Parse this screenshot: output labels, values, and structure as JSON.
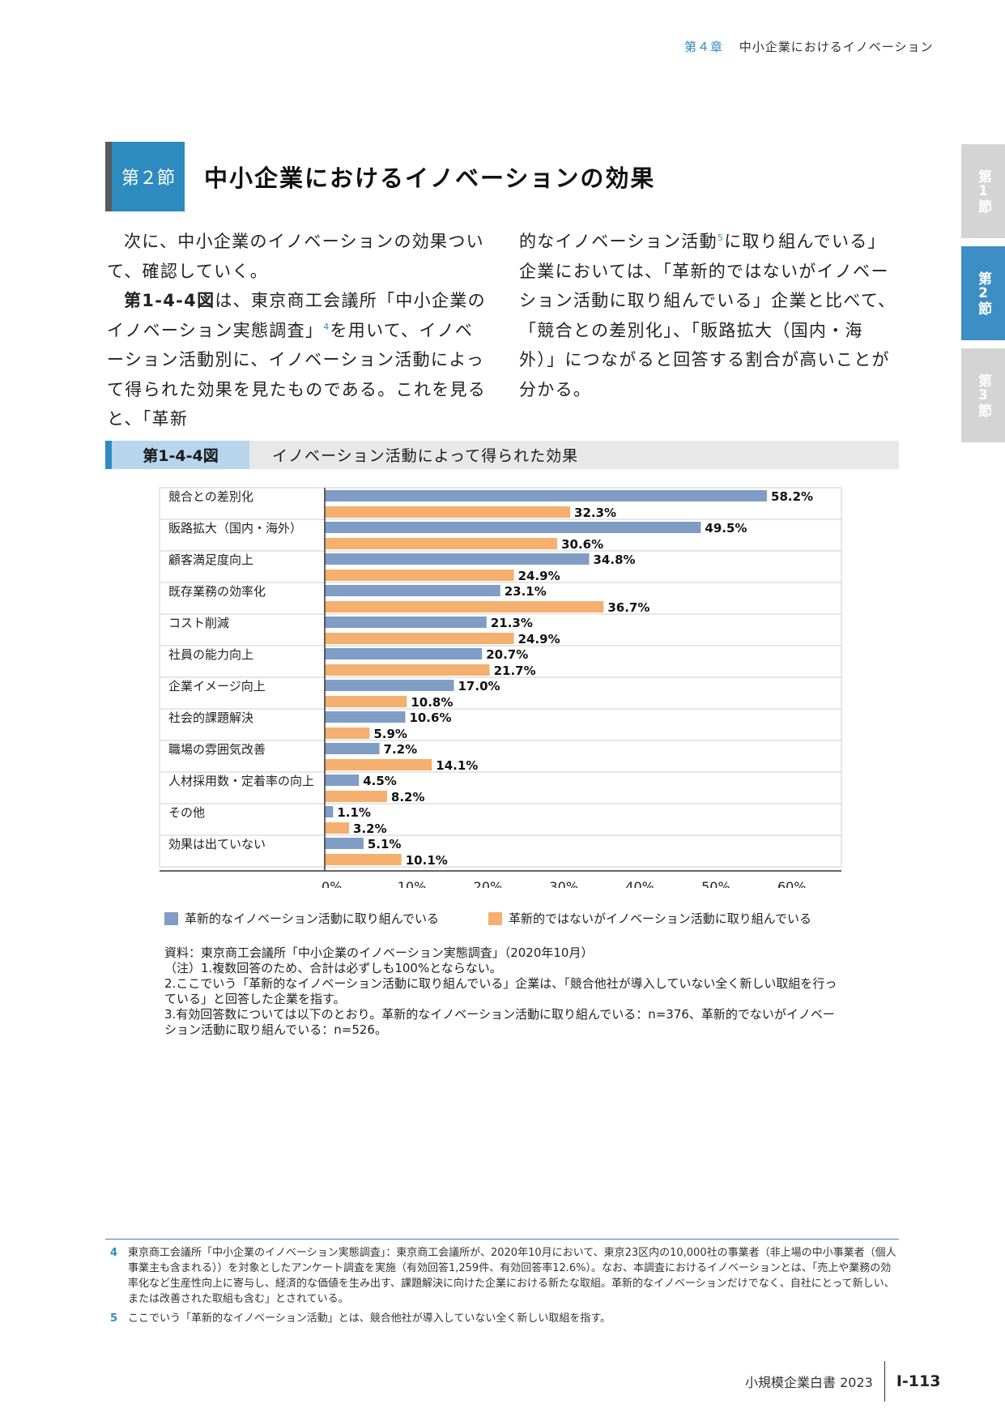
{
  "running_head": {
    "chapter": "第４章",
    "title": "中小企業におけるイノベーション"
  },
  "section": {
    "tag": "第２節",
    "title": "中小企業におけるイノベーションの効果"
  },
  "side_tabs": [
    "第1節",
    "第2節",
    "第3節"
  ],
  "body": {
    "left_p1": "次に、中小企業のイノベーションの効果ついて、確認していく。",
    "left_p2_fig": "第1-4-4図",
    "left_p2_a": "は、東京商工会議所「中小企業のイノベーション実態調査」",
    "left_p2_sup": "4",
    "left_p2_b": "を用いて、イノベーション活動別に、イノベーション活動によって得られた効果を見たものである。これを見ると、「革新",
    "right_p1_a": "的なイノベーション活動",
    "right_p1_sup": "5",
    "right_p1_b": "に取り組んでいる」企業においては、「革新的ではないがイノベーション活動に取り組んでいる」企業と比べて、「競合との差別化」、「販路拡大（国内・海外）」につながると回答する割合が高いことが分かる。"
  },
  "figure": {
    "number": "第1-4-4図",
    "title": "イノベーション活動によって得られた効果"
  },
  "chart_data": {
    "type": "bar",
    "orientation": "horizontal",
    "categories": [
      "競合との差別化",
      "販路拡大（国内・海外）",
      "顧客満足度向上",
      "既存業務の効率化",
      "コスト削減",
      "社員の能力向上",
      "企業イメージ向上",
      "社会的課題解決",
      "職場の雰囲気改善",
      "人材採用数・定着率の向上",
      "その他",
      "効果は出ていない"
    ],
    "series": [
      {
        "name": "革新的なイノベーション活動に取り組んでいる",
        "color": "#7f9dc5",
        "values": [
          58.2,
          49.5,
          34.8,
          23.1,
          21.3,
          20.7,
          17.0,
          10.6,
          7.2,
          4.5,
          1.1,
          5.1
        ]
      },
      {
        "name": "革新的ではないがイノベーション活動に取り組んでいる",
        "color": "#f5b06f",
        "values": [
          32.3,
          30.6,
          24.9,
          36.7,
          24.9,
          21.7,
          10.8,
          5.9,
          14.1,
          8.2,
          3.2,
          10.1
        ]
      }
    ],
    "xlim": [
      0,
      68
    ],
    "xticks": [
      "0%",
      "10%",
      "20%",
      "30%",
      "40%",
      "50%",
      "60%"
    ],
    "grid": false,
    "legend": "bottom"
  },
  "notes": [
    "資料：東京商工会議所「中小企業のイノベーション実態調査」（2020年10月）",
    "（注）1.複数回答のため、合計は必ずしも100%とならない。",
    "2.ここでいう「革新的なイノベーション活動に取り組んでいる」企業は、「競合他社が導入していない全く新しい取組を行っている」と回答した企業を指す。",
    "3.有効回答数については以下のとおり。革新的なイノベーション活動に取り組んでいる：n=376、革新的でないがイノベーション活動に取り組んでいる：n=526。"
  ],
  "footnotes": [
    {
      "num": "4",
      "text": "東京商工会議所「中小企業のイノベーション実態調査」：東京商工会議所が、2020年10月において、東京23区内の10,000社の事業者（非上場の中小事業者（個人事業主も含まれる））を対象としたアンケート調査を実施（有効回答1,259件、有効回答率12.6%）。なお、本調査におけるイノベーションとは、「売上や業務の効率化など生産性向上に寄与し、経済的な価値を生み出す、課題解決に向けた企業における新たな取組。革新的なイノベーションだけでなく、自社にとって新しい、または改善された取組も含む」とされている。"
    },
    {
      "num": "5",
      "text": "ここでいう「革新的なイノベーション活動」とは、競合他社が導入していない全く新しい取組を指す。"
    }
  ],
  "folio": {
    "book": "小規模企業白書 2023",
    "page": "Ⅰ-113"
  }
}
